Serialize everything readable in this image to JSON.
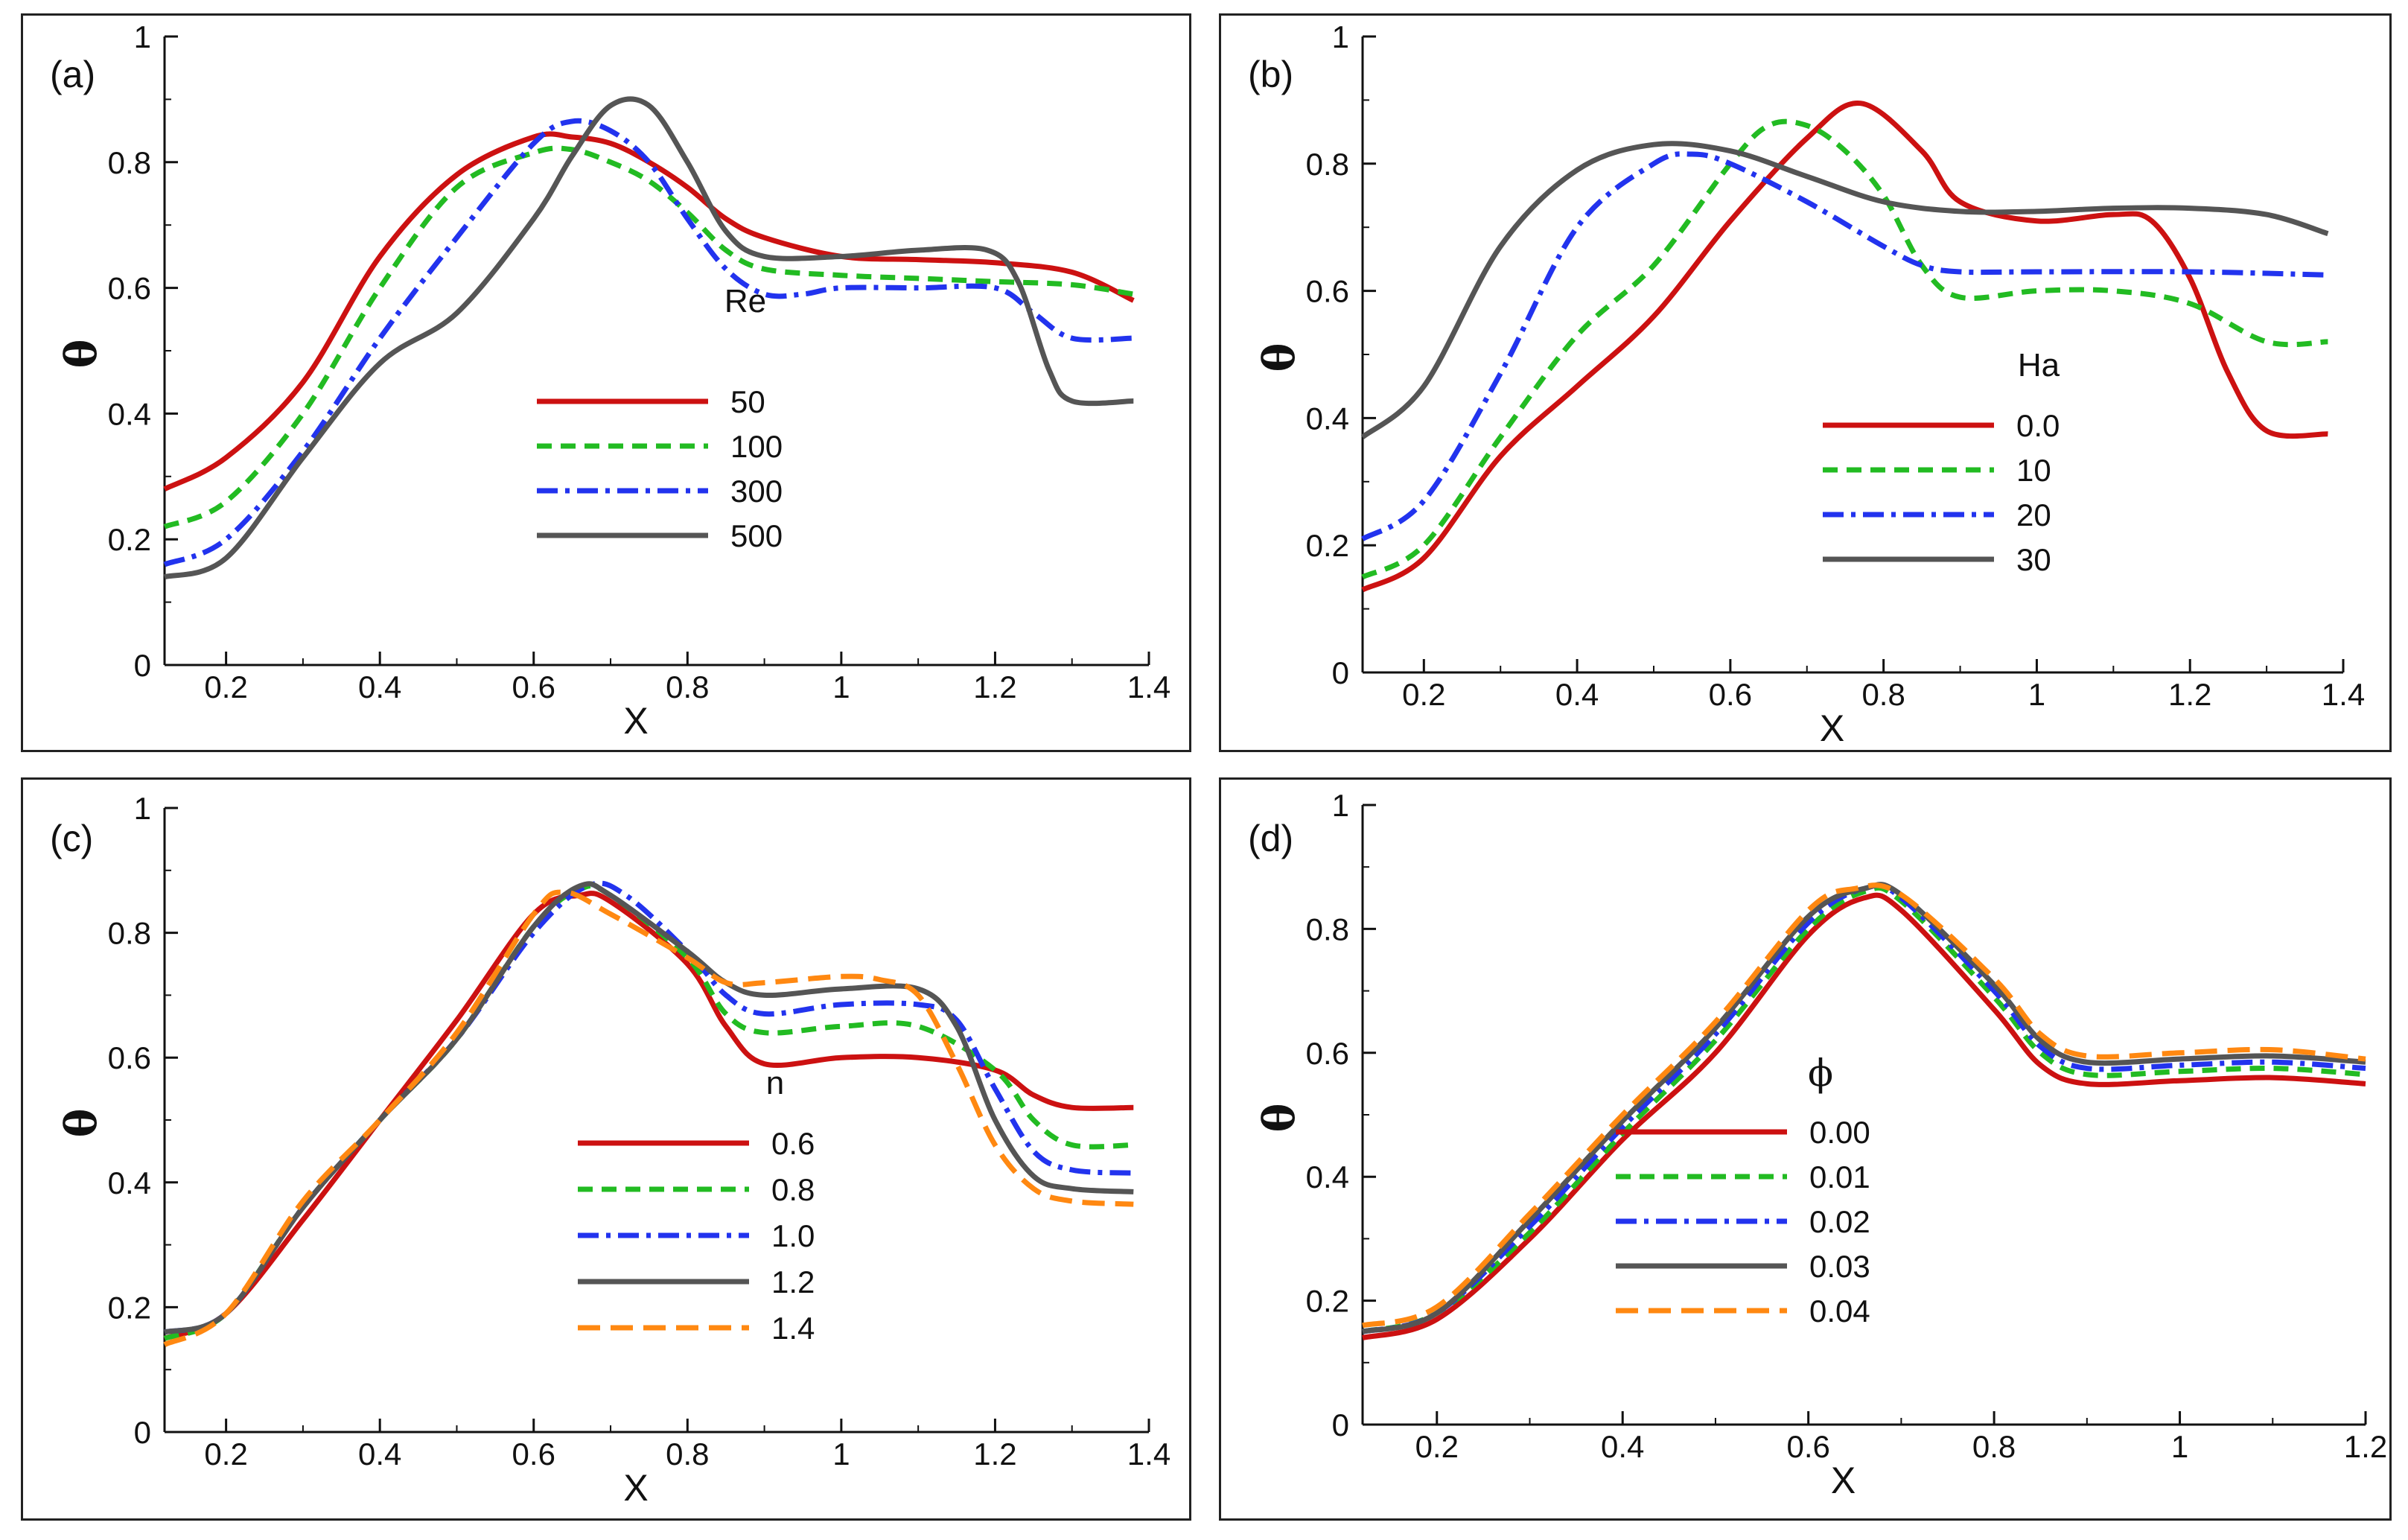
{
  "chart_data": [
    {
      "id": "a",
      "panel_label": "(a)",
      "type": "line",
      "xlabel": "X",
      "ylabel": "θ",
      "xlim": [
        0.12,
        1.4
      ],
      "ylim": [
        0,
        1
      ],
      "xticks": [
        0.2,
        0.4,
        0.6,
        0.8,
        1,
        1.2,
        1.4
      ],
      "xtick_labels": [
        "0.2",
        "0.4",
        "0.6",
        "0.8",
        "1",
        "1.2",
        "1.4"
      ],
      "yticks": [
        0,
        0.2,
        0.4,
        0.6,
        0.8,
        1
      ],
      "ytick_labels": [
        "0",
        "0.2",
        "0.4",
        "0.6",
        "0.8",
        "1"
      ],
      "legend_title": "Re",
      "legend_position": "center",
      "series": [
        {
          "name": "50",
          "color": "#cc1111",
          "dash": "solid",
          "x": [
            0.12,
            0.2,
            0.3,
            0.4,
            0.5,
            0.6,
            0.65,
            0.7,
            0.75,
            0.8,
            0.85,
            0.9,
            1.0,
            1.1,
            1.2,
            1.3,
            1.38
          ],
          "y": [
            0.28,
            0.33,
            0.45,
            0.65,
            0.78,
            0.84,
            0.84,
            0.83,
            0.8,
            0.76,
            0.71,
            0.68,
            0.65,
            0.645,
            0.64,
            0.625,
            0.58
          ]
        },
        {
          "name": "100",
          "color": "#22bb22",
          "dash": "dash",
          "x": [
            0.12,
            0.2,
            0.3,
            0.4,
            0.5,
            0.6,
            0.65,
            0.7,
            0.75,
            0.8,
            0.85,
            0.9,
            1.0,
            1.1,
            1.2,
            1.3,
            1.38
          ],
          "y": [
            0.22,
            0.26,
            0.4,
            0.6,
            0.76,
            0.815,
            0.82,
            0.8,
            0.77,
            0.72,
            0.66,
            0.63,
            0.62,
            0.615,
            0.61,
            0.605,
            0.59
          ]
        },
        {
          "name": "300",
          "color": "#2233ee",
          "dash": "dashdot",
          "x": [
            0.12,
            0.2,
            0.3,
            0.4,
            0.5,
            0.6,
            0.65,
            0.7,
            0.75,
            0.8,
            0.85,
            0.9,
            0.95,
            1.0,
            1.1,
            1.2,
            1.25,
            1.3,
            1.38
          ],
          "y": [
            0.16,
            0.2,
            0.34,
            0.52,
            0.68,
            0.83,
            0.865,
            0.85,
            0.8,
            0.71,
            0.63,
            0.59,
            0.59,
            0.6,
            0.6,
            0.6,
            0.56,
            0.52,
            0.52
          ]
        },
        {
          "name": "500",
          "color": "#555555",
          "dash": "solid",
          "x": [
            0.12,
            0.2,
            0.3,
            0.4,
            0.5,
            0.6,
            0.65,
            0.7,
            0.75,
            0.8,
            0.85,
            0.9,
            1.0,
            1.1,
            1.19,
            1.23,
            1.27,
            1.3,
            1.38
          ],
          "y": [
            0.14,
            0.17,
            0.33,
            0.48,
            0.56,
            0.71,
            0.81,
            0.89,
            0.89,
            0.8,
            0.69,
            0.65,
            0.65,
            0.66,
            0.66,
            0.61,
            0.47,
            0.42,
            0.42
          ]
        }
      ]
    },
    {
      "id": "b",
      "panel_label": "(b)",
      "type": "line",
      "xlabel": "X",
      "ylabel": "θ",
      "xlim": [
        0.12,
        1.4
      ],
      "ylim": [
        0,
        1
      ],
      "xticks": [
        0.2,
        0.4,
        0.6,
        0.8,
        1,
        1.2,
        1.4
      ],
      "xtick_labels": [
        "0.2",
        "0.4",
        "0.6",
        "0.8",
        "1",
        "1.2",
        "1.4"
      ],
      "yticks": [
        0,
        0.2,
        0.4,
        0.6,
        0.8,
        1
      ],
      "ytick_labels": [
        "0",
        "0.2",
        "0.4",
        "0.6",
        "0.8",
        "1"
      ],
      "legend_title": "Ha",
      "legend_position": "center-right",
      "series": [
        {
          "name": "0.0",
          "color": "#cc1111",
          "dash": "solid",
          "x": [
            0.12,
            0.2,
            0.3,
            0.4,
            0.5,
            0.6,
            0.7,
            0.77,
            0.85,
            0.9,
            1.0,
            1.1,
            1.15,
            1.2,
            1.25,
            1.3,
            1.38
          ],
          "y": [
            0.13,
            0.18,
            0.34,
            0.45,
            0.56,
            0.71,
            0.84,
            0.895,
            0.82,
            0.74,
            0.71,
            0.72,
            0.71,
            0.62,
            0.47,
            0.38,
            0.375
          ]
        },
        {
          "name": "10",
          "color": "#22bb22",
          "dash": "dash",
          "x": [
            0.12,
            0.2,
            0.3,
            0.4,
            0.5,
            0.6,
            0.65,
            0.7,
            0.75,
            0.8,
            0.85,
            0.9,
            1.0,
            1.1,
            1.2,
            1.3,
            1.38
          ],
          "y": [
            0.15,
            0.2,
            0.37,
            0.53,
            0.64,
            0.8,
            0.86,
            0.86,
            0.82,
            0.75,
            0.64,
            0.59,
            0.6,
            0.6,
            0.58,
            0.52,
            0.52
          ]
        },
        {
          "name": "20",
          "color": "#2233ee",
          "dash": "dashdot",
          "x": [
            0.12,
            0.2,
            0.3,
            0.4,
            0.5,
            0.55,
            0.6,
            0.7,
            0.8,
            0.85,
            0.9,
            1.0,
            1.2,
            1.38
          ],
          "y": [
            0.21,
            0.27,
            0.47,
            0.7,
            0.8,
            0.815,
            0.8,
            0.74,
            0.67,
            0.64,
            0.63,
            0.63,
            0.63,
            0.625
          ]
        },
        {
          "name": "30",
          "color": "#555555",
          "dash": "solid",
          "x": [
            0.12,
            0.2,
            0.3,
            0.4,
            0.5,
            0.6,
            0.7,
            0.8,
            0.9,
            1.0,
            1.1,
            1.2,
            1.3,
            1.38
          ],
          "y": [
            0.37,
            0.45,
            0.67,
            0.79,
            0.83,
            0.82,
            0.78,
            0.74,
            0.725,
            0.725,
            0.73,
            0.73,
            0.72,
            0.69
          ]
        }
      ]
    },
    {
      "id": "c",
      "panel_label": "(c)",
      "type": "line",
      "xlabel": "X",
      "ylabel": "θ",
      "xlim": [
        0.12,
        1.4
      ],
      "ylim": [
        0,
        1
      ],
      "xticks": [
        0.2,
        0.4,
        0.6,
        0.8,
        1,
        1.2,
        1.4
      ],
      "xtick_labels": [
        "0.2",
        "0.4",
        "0.6",
        "0.8",
        "1",
        "1.2",
        "1.4"
      ],
      "yticks": [
        0,
        0.2,
        0.4,
        0.6,
        0.8,
        1
      ],
      "ytick_labels": [
        "0",
        "0.2",
        "0.4",
        "0.6",
        "0.8",
        "1"
      ],
      "legend_title": "n",
      "legend_position": "bottom-center",
      "series": [
        {
          "name": "0.6",
          "color": "#cc1111",
          "dash": "solid",
          "x": [
            0.12,
            0.2,
            0.3,
            0.4,
            0.5,
            0.6,
            0.66,
            0.7,
            0.8,
            0.85,
            0.9,
            1.0,
            1.1,
            1.2,
            1.25,
            1.3,
            1.38
          ],
          "y": [
            0.15,
            0.19,
            0.34,
            0.5,
            0.66,
            0.83,
            0.86,
            0.85,
            0.75,
            0.65,
            0.59,
            0.6,
            0.6,
            0.58,
            0.54,
            0.52,
            0.52
          ]
        },
        {
          "name": "0.8",
          "color": "#22bb22",
          "dash": "dash",
          "x": [
            0.12,
            0.2,
            0.3,
            0.4,
            0.5,
            0.6,
            0.66,
            0.7,
            0.8,
            0.85,
            0.9,
            1.0,
            1.1,
            1.2,
            1.25,
            1.3,
            1.38
          ],
          "y": [
            0.15,
            0.19,
            0.36,
            0.5,
            0.63,
            0.81,
            0.87,
            0.86,
            0.76,
            0.67,
            0.64,
            0.65,
            0.65,
            0.58,
            0.5,
            0.46,
            0.46
          ]
        },
        {
          "name": "1.0",
          "color": "#2233ee",
          "dash": "dashdot",
          "x": [
            0.12,
            0.2,
            0.3,
            0.4,
            0.5,
            0.6,
            0.67,
            0.72,
            0.8,
            0.85,
            0.9,
            1.0,
            1.1,
            1.15,
            1.2,
            1.25,
            1.3,
            1.38
          ],
          "y": [
            0.16,
            0.19,
            0.36,
            0.5,
            0.63,
            0.8,
            0.875,
            0.86,
            0.77,
            0.7,
            0.67,
            0.685,
            0.685,
            0.66,
            0.55,
            0.45,
            0.42,
            0.415
          ]
        },
        {
          "name": "1.2",
          "color": "#555555",
          "dash": "solid",
          "x": [
            0.12,
            0.2,
            0.3,
            0.4,
            0.5,
            0.6,
            0.66,
            0.7,
            0.8,
            0.85,
            0.9,
            1.0,
            1.1,
            1.15,
            1.2,
            1.25,
            1.3,
            1.38
          ],
          "y": [
            0.16,
            0.19,
            0.36,
            0.5,
            0.63,
            0.81,
            0.875,
            0.86,
            0.77,
            0.72,
            0.7,
            0.71,
            0.71,
            0.65,
            0.5,
            0.41,
            0.39,
            0.385
          ]
        },
        {
          "name": "1.4",
          "color": "#ff8811",
          "dash": "longdash",
          "x": [
            0.12,
            0.2,
            0.3,
            0.4,
            0.5,
            0.6,
            0.64,
            0.7,
            0.8,
            0.85,
            0.9,
            1.0,
            1.05,
            1.1,
            1.15,
            1.2,
            1.25,
            1.3,
            1.38
          ],
          "y": [
            0.14,
            0.19,
            0.37,
            0.5,
            0.64,
            0.83,
            0.865,
            0.83,
            0.76,
            0.72,
            0.72,
            0.73,
            0.725,
            0.7,
            0.59,
            0.46,
            0.39,
            0.37,
            0.365
          ]
        }
      ]
    },
    {
      "id": "d",
      "panel_label": "(d)",
      "type": "line",
      "xlabel": "X",
      "ylabel": "θ",
      "xlim": [
        0.12,
        1.2
      ],
      "ylim": [
        0,
        1
      ],
      "xticks": [
        0.2,
        0.4,
        0.6,
        0.8,
        1,
        1.2
      ],
      "xtick_labels": [
        "0.2",
        "0.4",
        "0.6",
        "0.8",
        "1",
        "1.2"
      ],
      "yticks": [
        0,
        0.2,
        0.4,
        0.6,
        0.8,
        1
      ],
      "ytick_labels": [
        "0",
        "0.2",
        "0.4",
        "0.6",
        "0.8",
        "1"
      ],
      "legend_title": "ϕ",
      "legend_position": "bottom-center",
      "series": [
        {
          "name": "0.00",
          "color": "#cc1111",
          "dash": "solid",
          "x": [
            0.12,
            0.2,
            0.3,
            0.4,
            0.5,
            0.6,
            0.66,
            0.7,
            0.8,
            0.85,
            0.9,
            1.0,
            1.1,
            1.2
          ],
          "y": [
            0.14,
            0.17,
            0.3,
            0.46,
            0.6,
            0.79,
            0.85,
            0.83,
            0.67,
            0.58,
            0.55,
            0.555,
            0.56,
            0.55
          ]
        },
        {
          "name": "0.01",
          "color": "#22bb22",
          "dash": "dash",
          "x": [
            0.12,
            0.2,
            0.3,
            0.4,
            0.5,
            0.6,
            0.66,
            0.7,
            0.8,
            0.85,
            0.9,
            1.0,
            1.1,
            1.2
          ],
          "y": [
            0.15,
            0.18,
            0.31,
            0.47,
            0.62,
            0.8,
            0.86,
            0.845,
            0.69,
            0.6,
            0.565,
            0.57,
            0.575,
            0.565
          ]
        },
        {
          "name": "0.02",
          "color": "#2233ee",
          "dash": "dashdot",
          "x": [
            0.12,
            0.2,
            0.3,
            0.4,
            0.5,
            0.6,
            0.66,
            0.7,
            0.8,
            0.85,
            0.9,
            1.0,
            1.1,
            1.2
          ],
          "y": [
            0.15,
            0.18,
            0.32,
            0.48,
            0.63,
            0.81,
            0.865,
            0.85,
            0.7,
            0.61,
            0.575,
            0.58,
            0.585,
            0.575
          ]
        },
        {
          "name": "0.03",
          "color": "#555555",
          "dash": "solid",
          "x": [
            0.12,
            0.2,
            0.3,
            0.4,
            0.5,
            0.6,
            0.66,
            0.7,
            0.8,
            0.85,
            0.9,
            1.0,
            1.1,
            1.2
          ],
          "y": [
            0.15,
            0.18,
            0.33,
            0.49,
            0.64,
            0.82,
            0.865,
            0.855,
            0.71,
            0.62,
            0.585,
            0.59,
            0.595,
            0.585
          ]
        },
        {
          "name": "0.04",
          "color": "#ff8811",
          "dash": "longdash",
          "x": [
            0.12,
            0.2,
            0.3,
            0.4,
            0.5,
            0.6,
            0.65,
            0.7,
            0.8,
            0.85,
            0.9,
            1.0,
            1.1,
            1.2
          ],
          "y": [
            0.16,
            0.19,
            0.34,
            0.5,
            0.65,
            0.83,
            0.865,
            0.855,
            0.72,
            0.63,
            0.595,
            0.6,
            0.605,
            0.59
          ]
        }
      ]
    }
  ]
}
